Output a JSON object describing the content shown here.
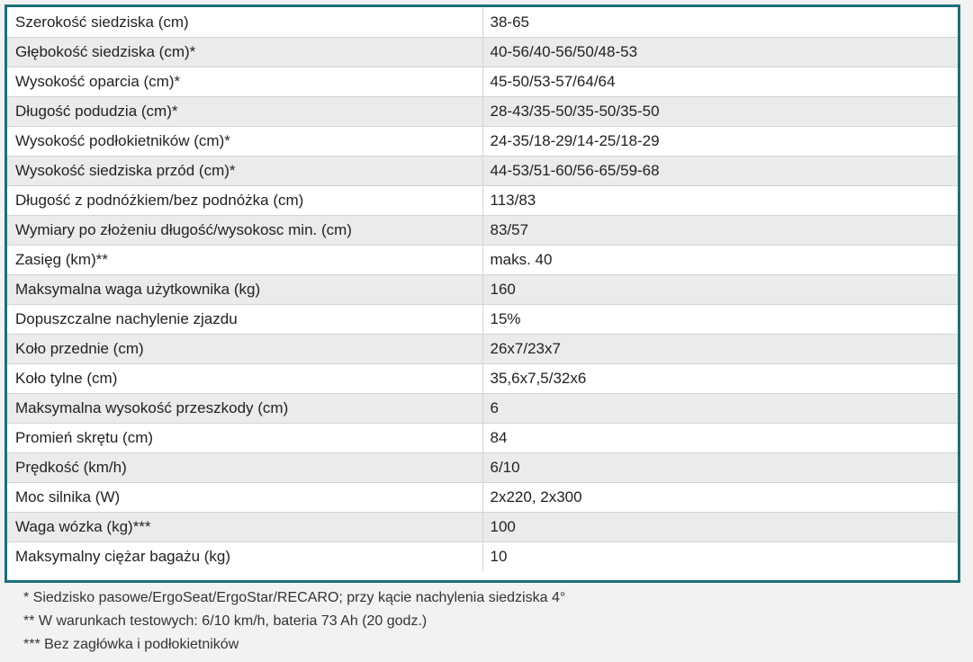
{
  "spec_table": {
    "rows": [
      {
        "label": "Szerokość siedziska (cm)",
        "value": "38-65"
      },
      {
        "label": "Głębokość siedziska (cm)*",
        "value": "40-56/40-56/50/48-53"
      },
      {
        "label": "Wysokość oparcia (cm)*",
        "value": "45-50/53-57/64/64"
      },
      {
        "label": "Długość podudzia (cm)*",
        "value": "28-43/35-50/35-50/35-50"
      },
      {
        "label": "Wysokość podłokietników (cm)*",
        "value": "24-35/18-29/14-25/18-29"
      },
      {
        "label": "Wysokość siedziska przód (cm)*",
        "value": "44-53/51-60/56-65/59-68"
      },
      {
        "label": "Długość z podnóżkiem/bez podnóżka (cm)",
        "value": "113/83"
      },
      {
        "label": "Wymiary po złożeniu długość/wysokosc min. (cm)",
        "value": "83/57"
      },
      {
        "label": "Zasięg (km)**",
        "value": "maks. 40"
      },
      {
        "label": "Maksymalna waga użytkownika (kg)",
        "value": "160"
      },
      {
        "label": "Dopuszczalne nachylenie zjazdu",
        "value": "15%"
      },
      {
        "label": "Koło przednie (cm)",
        "value": "26x7/23x7"
      },
      {
        "label": "Koło tylne (cm)",
        "value": "35,6x7,5/32x6"
      },
      {
        "label": "Maksymalna wysokość przeszkody (cm)",
        "value": "6"
      },
      {
        "label": "Promień skrętu (cm)",
        "value": "84"
      },
      {
        "label": "Prędkość (km/h)",
        "value": "6/10"
      },
      {
        "label": "Moc silnika (W)",
        "value": "2x220, 2x300"
      },
      {
        "label": "Waga wózka (kg)***",
        "value": "100"
      },
      {
        "label": "Maksymalny ciężar bagażu (kg)",
        "value": "10"
      }
    ]
  },
  "footnotes": [
    "* Siedzisko pasowe/ErgoSeat/ErgoStar/RECARO; przy kącie nachylenia siedziska 4°",
    "** W warunkach testowych: 6/10 km/h, bateria 73 Ah (20 godz.)",
    "*** Bez zagłówka i podłokietników"
  ],
  "colors": {
    "frame_border": "#1d6f77",
    "row_stripe": "#ebebeb",
    "row_plain": "#ffffff",
    "page_background": "#f2f2f2"
  }
}
